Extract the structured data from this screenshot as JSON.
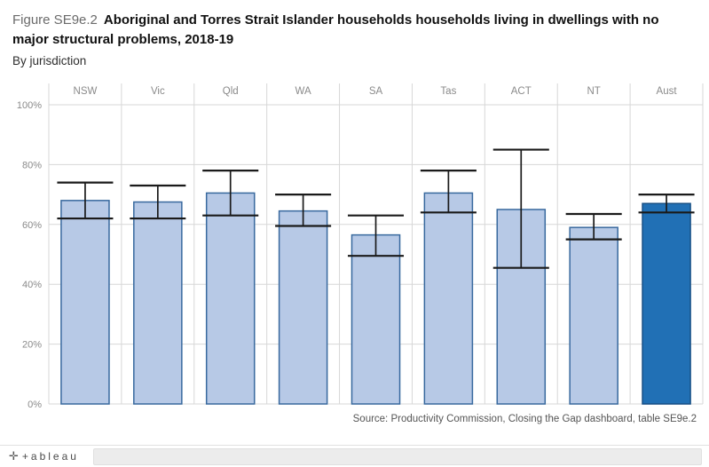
{
  "header": {
    "figure_label": "Figure SE9e.2",
    "title": "Aboriginal and Torres Strait Islander households households living in dwellings with no major structural problems, 2018-19",
    "subtitle": "By jurisdiction"
  },
  "source": "Source: Productivity Commission, Closing the Gap dashboard, table SE9e.2",
  "footer": {
    "logo_symbol": "✛",
    "logo_text": "+ableau"
  },
  "chart_data": {
    "type": "bar",
    "title": "Aboriginal and Torres Strait Islander households households living in dwellings with no major structural problems, 2018-19",
    "subtitle": "By jurisdiction",
    "categories": [
      "NSW",
      "Vic",
      "Qld",
      "WA",
      "SA",
      "Tas",
      "ACT",
      "NT",
      "Aust"
    ],
    "values": [
      68,
      67.5,
      70.5,
      64.5,
      56.5,
      70.5,
      65,
      59,
      67
    ],
    "error_low": [
      62,
      62,
      63,
      59.5,
      49.5,
      64,
      45.5,
      55,
      64
    ],
    "error_high": [
      74,
      73,
      78,
      70,
      63,
      78,
      85,
      63.5,
      70
    ],
    "xlabel": "",
    "ylabel": "",
    "ylim": [
      0,
      100
    ],
    "yticks": [
      0,
      20,
      40,
      60,
      80,
      100
    ],
    "ytick_labels": [
      "0%",
      "20%",
      "40%",
      "60%",
      "80%",
      "100%"
    ],
    "grid": true,
    "legend": "none",
    "bar_color": "#b7c9e6",
    "bar_border": "#38699e",
    "highlight_index": 8,
    "highlight_color": "#2170b5",
    "highlight_border": "#174f85",
    "error_color": "#1a1a1a",
    "grid_color": "#d7d7d7",
    "label_color": "#8a8a8a"
  }
}
